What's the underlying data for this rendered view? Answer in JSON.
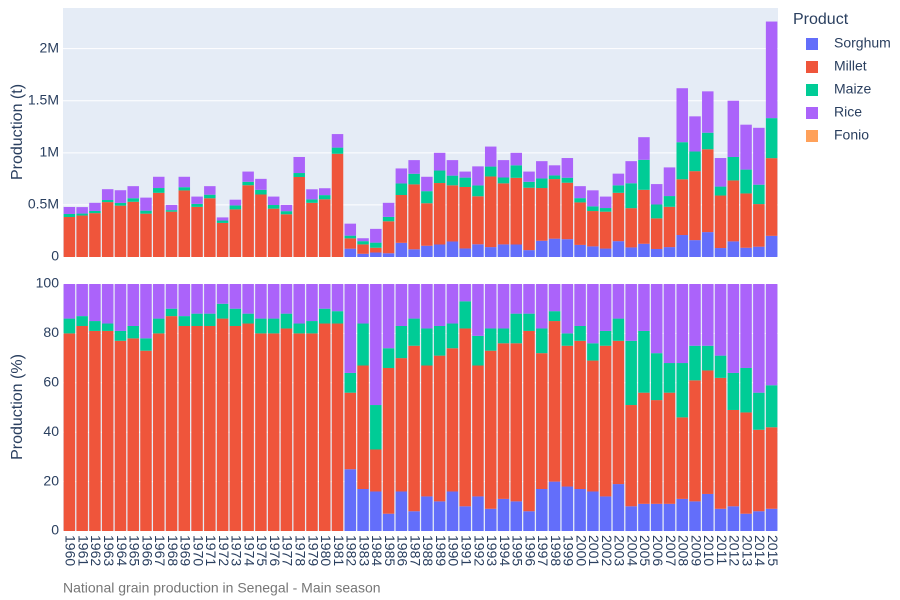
{
  "chart_data": [
    {
      "type": "bar",
      "stacked": true,
      "y_label": "Production (t)",
      "legend_title": "Product",
      "legend": "top-right",
      "grid": true,
      "ylim": [
        0,
        2390000
      ],
      "yticks": [
        0,
        {
          "value": 500000,
          "label": "0.5M"
        },
        {
          "value": 1000000,
          "label": "1M"
        },
        {
          "value": 1500000,
          "label": "1.5M"
        },
        {
          "value": 2000000,
          "label": "2M"
        }
      ],
      "series": [
        {
          "name": "Sorghum",
          "color": "#636efa",
          "values": [
            0,
            0,
            0,
            0,
            0,
            0,
            0,
            0,
            0,
            0,
            0,
            0,
            0,
            0,
            0,
            0,
            0,
            0,
            0,
            0,
            0,
            0,
            80000,
            31000,
            43000,
            36000,
            136000,
            74000,
            108000,
            120000,
            149000,
            82000,
            122000,
            95000,
            121000,
            120000,
            66000,
            156000,
            176000,
            171000,
            116000,
            102000,
            81000,
            152000,
            92000,
            127000,
            77000,
            95000,
            211000,
            162000,
            239000,
            86000,
            150000,
            89000,
            99000,
            203000
          ]
        },
        {
          "name": "Millet",
          "color": "#ef553b",
          "values": [
            384000,
            398000,
            421000,
            527000,
            493000,
            530000,
            416000,
            616000,
            435000,
            639000,
            481000,
            564000,
            327000,
            457000,
            689000,
            600000,
            464000,
            410000,
            768000,
            520000,
            554000,
            991000,
            99000,
            90000,
            46000,
            307000,
            459000,
            623000,
            408000,
            590000,
            539000,
            590000,
            461000,
            678000,
            586000,
            640000,
            599000,
            506000,
            572000,
            542000,
            408000,
            339000,
            354000,
            464000,
            377000,
            518000,
            294000,
            387000,
            535000,
            662000,
            795000,
            504000,
            585000,
            521000,
            409000,
            746000
          ]
        },
        {
          "name": "Maize",
          "color": "#00cc96",
          "values": [
            29000,
            19000,
            21000,
            20000,
            26000,
            34000,
            29000,
            46000,
            15000,
            31000,
            29000,
            34000,
            23000,
            38000,
            33000,
            45000,
            35000,
            30000,
            38000,
            33000,
            40000,
            59000,
            26000,
            31000,
            49000,
            42000,
            111000,
            102000,
            116000,
            120000,
            93000,
            90000,
            104000,
            95000,
            56000,
            120000,
            57000,
            92000,
            35000,
            48000,
            41000,
            45000,
            35000,
            72000,
            239000,
            288000,
            133000,
            103000,
            356000,
            189000,
            159000,
            86000,
            225000,
            229000,
            186000,
            384000
          ]
        },
        {
          "name": "Rice",
          "color": "#ab63fa",
          "values": [
            67000,
            62000,
            78000,
            104000,
            122000,
            116000,
            125000,
            108000,
            50000,
            100000,
            70000,
            82000,
            30000,
            55000,
            98000,
            105000,
            81000,
            60000,
            154000,
            97000,
            66000,
            130000,
            115000,
            28000,
            132000,
            135000,
            144000,
            131000,
            138000,
            170000,
            149000,
            58000,
            183000,
            192000,
            167000,
            120000,
            98000,
            166000,
            97000,
            189000,
            115000,
            154000,
            110000,
            112000,
            212000,
            217000,
            196000,
            275000,
            518000,
            337000,
            397000,
            274000,
            540000,
            431000,
            546000,
            927000
          ]
        },
        {
          "name": "Fonio",
          "color": "#ffa15a",
          "values": [
            0,
            0,
            0,
            0,
            0,
            0,
            0,
            0,
            0,
            0,
            0,
            0,
            0,
            0,
            0,
            0,
            0,
            0,
            0,
            0,
            0,
            0,
            0,
            0,
            0,
            0,
            0,
            0,
            0,
            0,
            0,
            0,
            0,
            0,
            0,
            0,
            0,
            0,
            0,
            0,
            0,
            0,
            0,
            0,
            0,
            0,
            0,
            0,
            0,
            0,
            0,
            0,
            0,
            0,
            0,
            0
          ]
        }
      ]
    },
    {
      "type": "bar",
      "stacked": true,
      "y_label": "Production (%)",
      "grid": true,
      "caption": "National grain production in Senegal - Main season",
      "ylim": [
        0,
        100
      ],
      "yticks": [
        0,
        20,
        40,
        60,
        80,
        100
      ],
      "categories": [
        "1960",
        "1961",
        "1962",
        "1963",
        "1964",
        "1965",
        "1966",
        "1967",
        "1968",
        "1969",
        "1970",
        "1971",
        "1972",
        "1973",
        "1974",
        "1975",
        "1976",
        "1977",
        "1978",
        "1979",
        "1980",
        "1981",
        "1982",
        "1983",
        "1984",
        "1985",
        "1986",
        "1987",
        "1988",
        "1989",
        "1990",
        "1991",
        "1992",
        "1993",
        "1994",
        "1995",
        "1996",
        "1997",
        "1998",
        "1999",
        "2000",
        "2001",
        "2002",
        "2003",
        "2004",
        "2005",
        "2006",
        "2007",
        "2008",
        "2009",
        "2010",
        "2011",
        "2012",
        "2013",
        "2014",
        "2015"
      ],
      "series": [
        {
          "values": [
            0,
            0,
            0,
            0,
            0,
            0,
            0,
            0,
            0,
            0,
            0,
            0,
            0,
            0,
            0,
            0,
            0,
            0,
            0,
            0,
            0,
            0,
            25,
            17,
            16,
            7,
            16,
            8,
            14,
            12,
            16,
            10,
            14,
            9,
            13,
            12,
            8,
            17,
            20,
            18,
            17,
            16,
            14,
            19,
            10,
            11,
            11,
            11,
            13,
            12,
            15,
            9,
            10,
            7,
            8,
            9
          ]
        },
        {
          "values": [
            80,
            83,
            81,
            81,
            77,
            78,
            73,
            80,
            87,
            83,
            83,
            83,
            86,
            83,
            84,
            80,
            80,
            82,
            80,
            80,
            84,
            84,
            31,
            50,
            17,
            59,
            54,
            67,
            53,
            59,
            58,
            72,
            53,
            64,
            63,
            64,
            73,
            55,
            65,
            57,
            60,
            53,
            61,
            58,
            41,
            45,
            42,
            45,
            33,
            49,
            50,
            53,
            39,
            41,
            33,
            33
          ]
        },
        {
          "values": [
            6,
            4,
            4,
            3,
            4,
            5,
            5,
            6,
            3,
            4,
            5,
            5,
            6,
            7,
            4,
            6,
            6,
            6,
            4,
            5,
            6,
            5,
            8,
            17,
            18,
            8,
            13,
            11,
            15,
            12,
            10,
            11,
            12,
            9,
            6,
            12,
            7,
            10,
            4,
            5,
            6,
            7,
            6,
            9,
            26,
            25,
            19,
            12,
            22,
            14,
            10,
            9,
            15,
            18,
            15,
            17
          ]
        },
        {
          "values": [
            14,
            13,
            15,
            16,
            19,
            17,
            22,
            14,
            10,
            13,
            12,
            12,
            8,
            10,
            12,
            14,
            14,
            12,
            16,
            15,
            10,
            11,
            36,
            16,
            49,
            26,
            17,
            14,
            18,
            17,
            16,
            7,
            21,
            18,
            18,
            12,
            12,
            18,
            11,
            20,
            17,
            24,
            19,
            14,
            23,
            19,
            28,
            32,
            32,
            25,
            25,
            29,
            36,
            34,
            44,
            41
          ]
        },
        {
          "values": [
            0,
            0,
            0,
            0,
            0,
            0,
            0,
            0,
            0,
            0,
            0,
            0,
            0,
            0,
            0,
            0,
            0,
            0,
            0,
            0,
            0,
            0,
            0,
            0,
            0,
            0,
            0,
            0,
            0,
            0,
            0,
            0,
            0,
            0,
            0,
            0,
            0,
            0,
            0,
            0,
            0,
            0,
            0,
            0,
            0,
            0,
            0,
            0,
            0,
            0,
            0,
            0,
            0,
            0,
            0,
            0
          ]
        }
      ]
    }
  ]
}
